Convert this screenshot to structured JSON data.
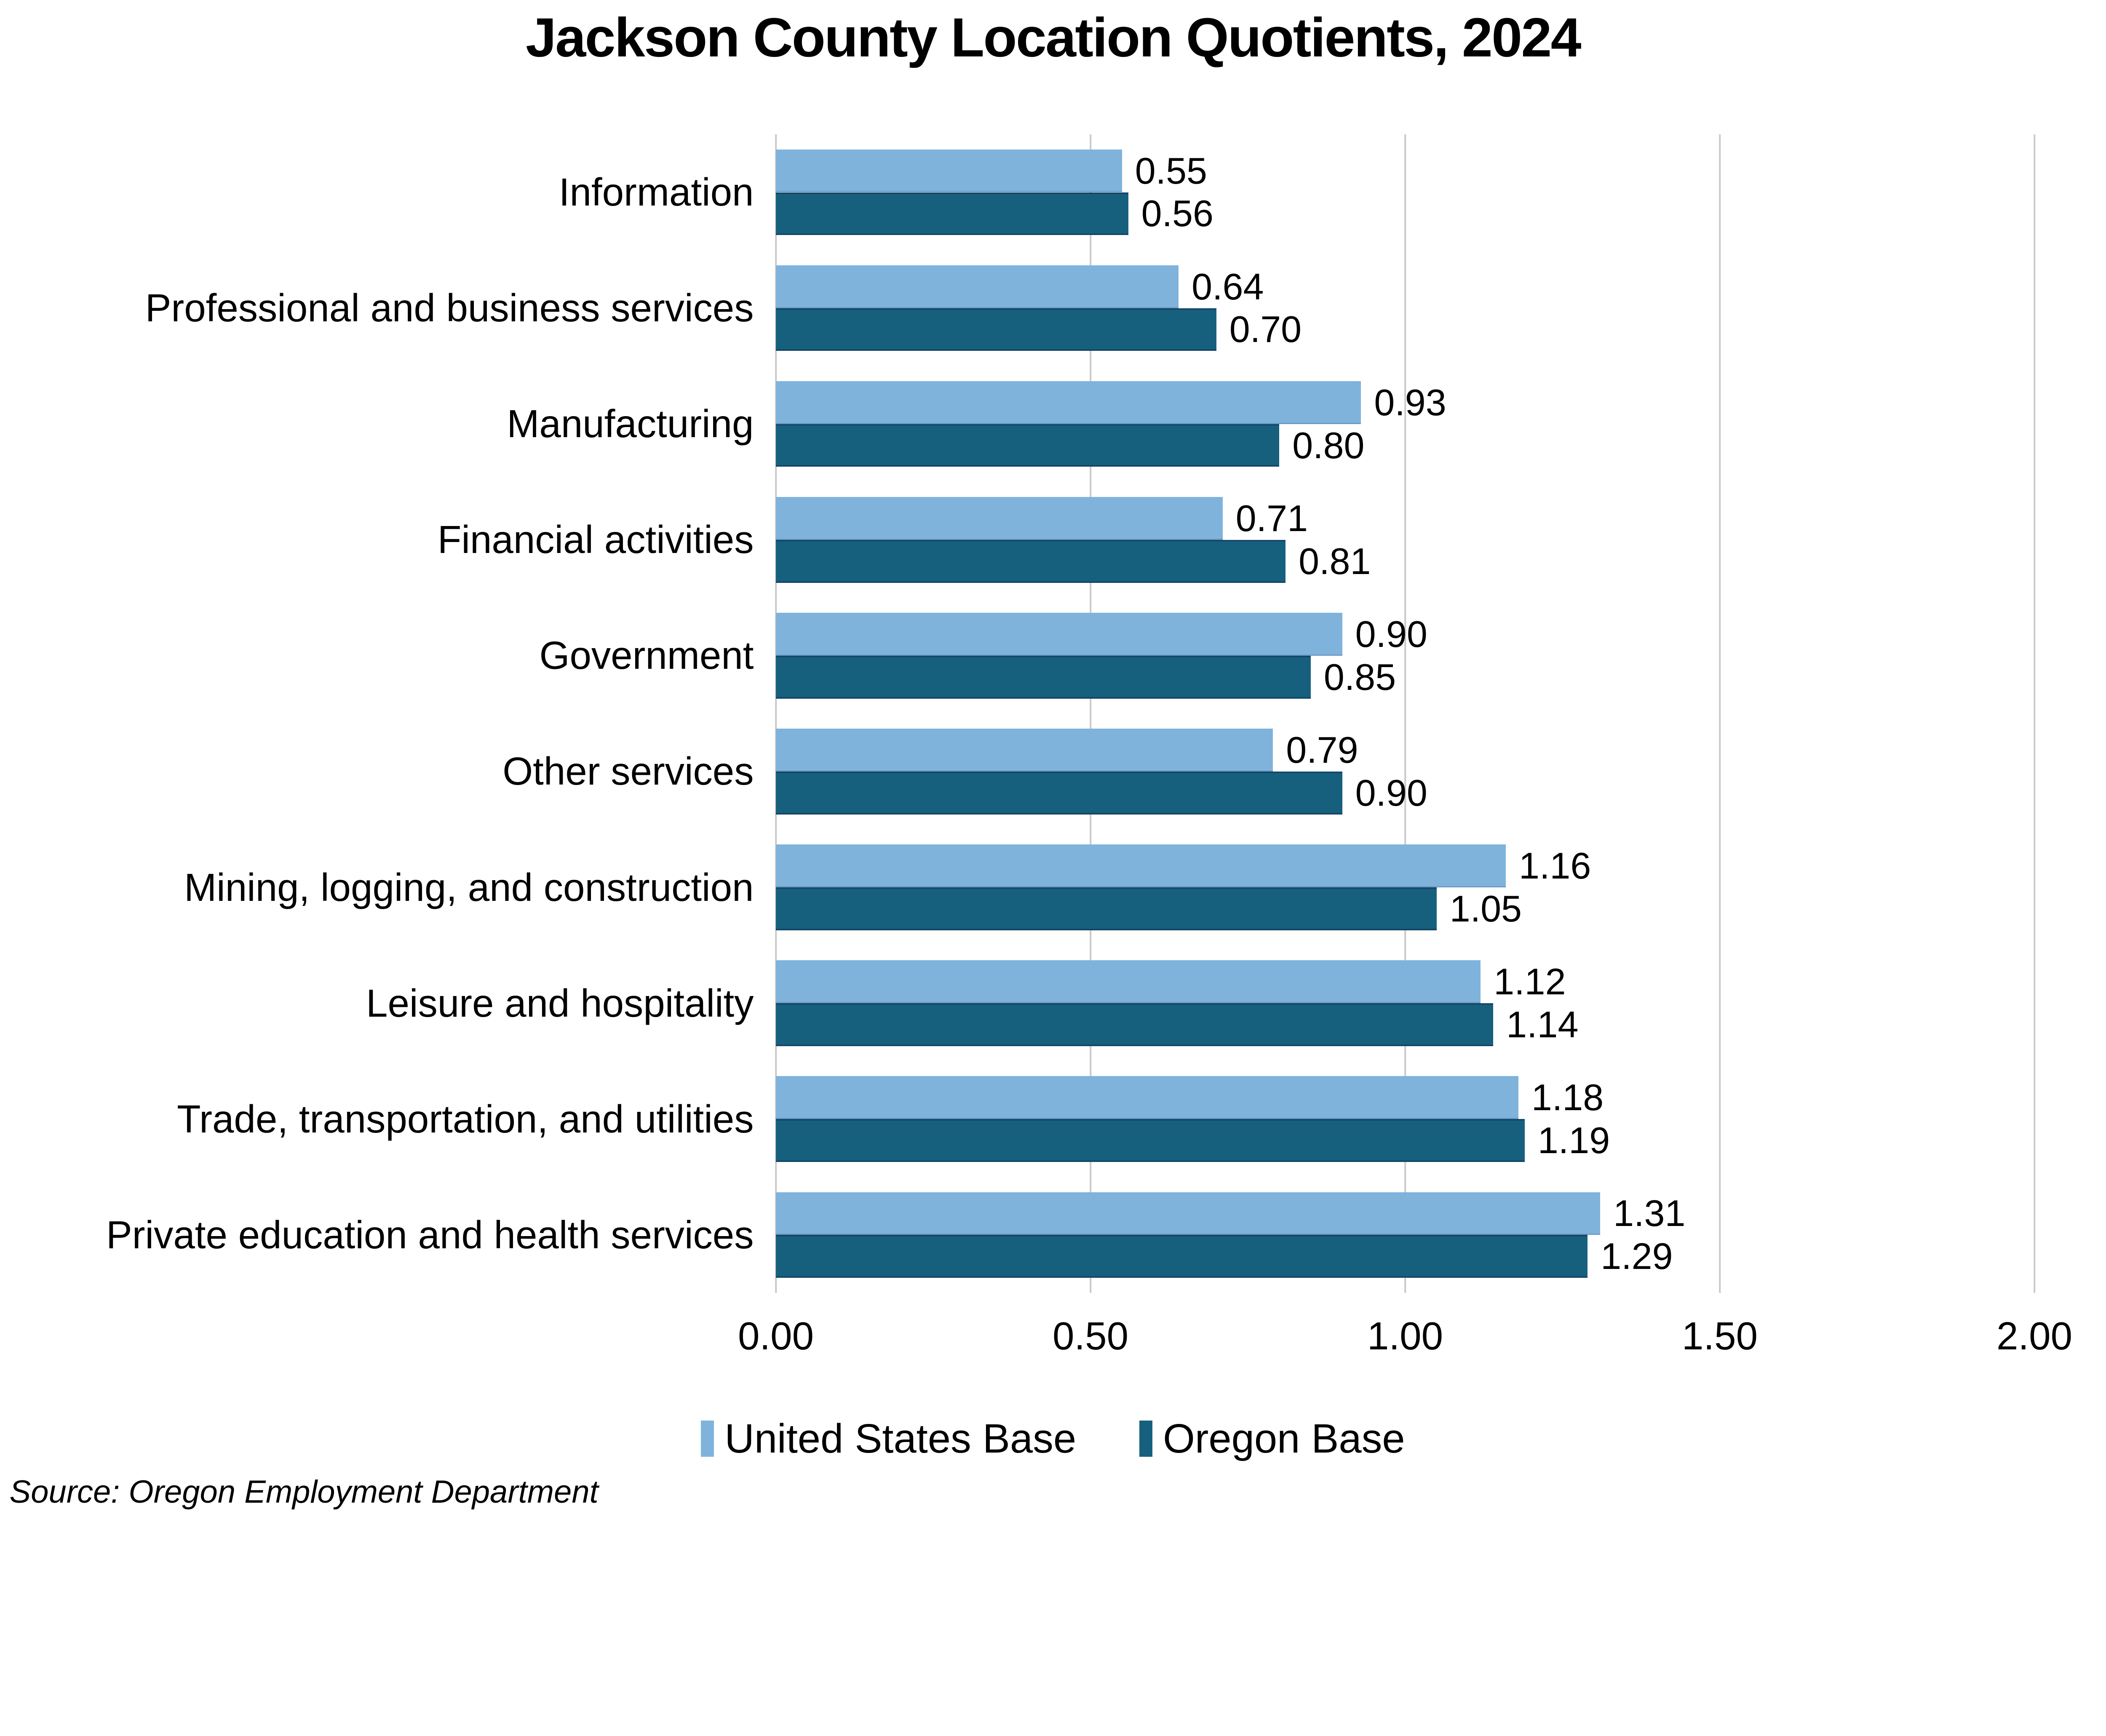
{
  "title": "Jackson County Location Quotients, 2024",
  "source_note": "Source: Oregon Employment Department",
  "colors": {
    "us_base": "#7FB3DC",
    "oregon_base": "#16607E",
    "gridline": "#C9C9C9",
    "text": "#000000",
    "background": "#FFFFFF"
  },
  "chart_data": {
    "type": "bar",
    "orientation": "horizontal",
    "title": "Jackson County Location Quotients, 2024",
    "categories": [
      "Information",
      "Professional and business services",
      "Manufacturing",
      "Financial activities",
      "Government",
      "Other services",
      "Mining, logging, and construction",
      "Leisure and hospitality",
      "Trade, transportation, and utilities",
      "Private education and health services"
    ],
    "series": [
      {
        "name": "United States Base",
        "color": "#7FB3DC",
        "values": [
          0.55,
          0.64,
          0.93,
          0.71,
          0.9,
          0.79,
          1.16,
          1.12,
          1.18,
          1.31
        ]
      },
      {
        "name": "Oregon Base",
        "color": "#16607E",
        "values": [
          0.56,
          0.7,
          0.8,
          0.81,
          0.85,
          0.9,
          1.05,
          1.14,
          1.19,
          1.29
        ]
      }
    ],
    "xlim": [
      0,
      2
    ],
    "xticks": [
      {
        "value": 0.0,
        "label": "0.00"
      },
      {
        "value": 0.5,
        "label": "0.50"
      },
      {
        "value": 1.0,
        "label": "1.00"
      },
      {
        "value": 1.5,
        "label": "1.50"
      },
      {
        "value": 2.0,
        "label": "2.00"
      }
    ],
    "grid": true,
    "legend_position": "bottom",
    "value_labels": true,
    "value_label_decimals": 2
  }
}
